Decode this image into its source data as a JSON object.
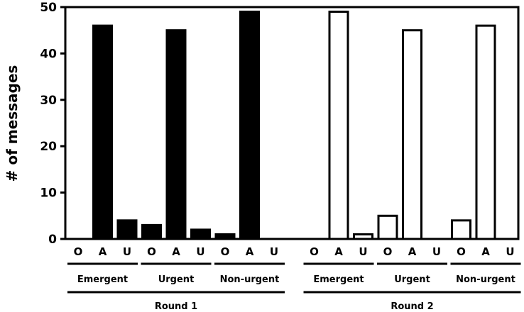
{
  "chart_data": {
    "type": "bar",
    "ylabel": "# of messages",
    "ylim": [
      0,
      50
    ],
    "yticks": [
      0,
      10,
      20,
      30,
      40,
      50
    ],
    "categories": [
      "O",
      "A",
      "U"
    ],
    "rounds": [
      {
        "name": "Round 1",
        "fill": "#000000",
        "groups": [
          {
            "name": "Emergent",
            "values": [
              0,
              46,
              4
            ]
          },
          {
            "name": "Urgent",
            "values": [
              3,
              45,
              2
            ]
          },
          {
            "name": "Non-urgent",
            "values": [
              1,
              49,
              0
            ]
          }
        ]
      },
      {
        "name": "Round 2",
        "fill": "#ffffff",
        "groups": [
          {
            "name": "Emergent",
            "values": [
              0,
              49,
              1
            ]
          },
          {
            "name": "Urgent",
            "values": [
              5,
              45,
              0
            ]
          },
          {
            "name": "Non-urgent",
            "values": [
              4,
              46,
              0
            ]
          }
        ]
      }
    ]
  }
}
